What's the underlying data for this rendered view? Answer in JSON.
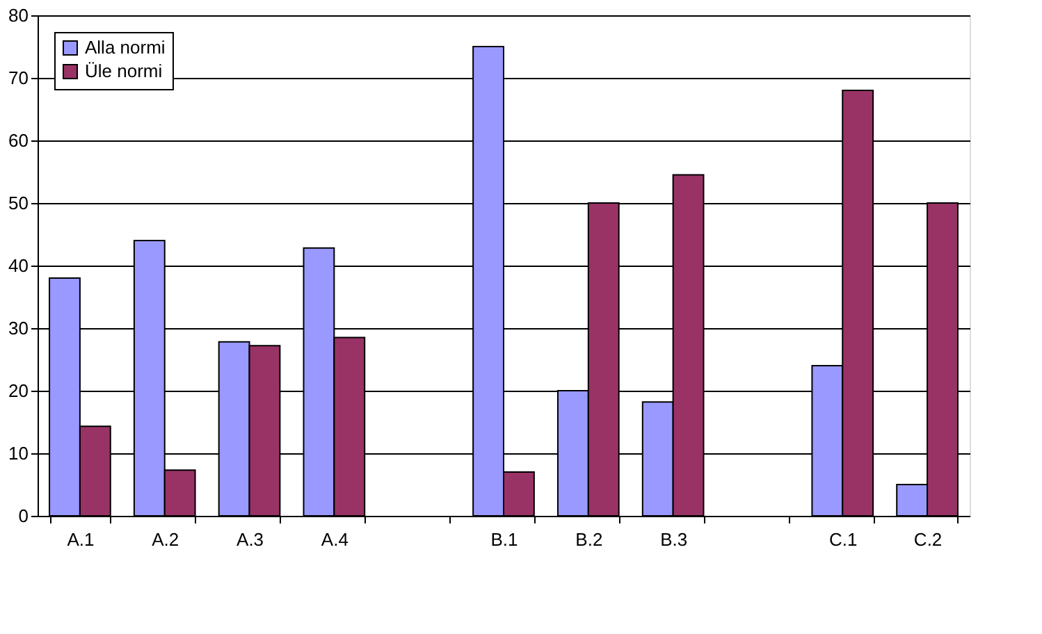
{
  "chart_data": {
    "type": "bar",
    "categories": [
      "A.1",
      "A.2",
      "A.3",
      "A.4",
      null,
      "B.1",
      "B.2",
      "B.3",
      null,
      "C.1",
      "C.2"
    ],
    "series": [
      {
        "name": "Alla normi",
        "color": "#9999ff",
        "values": [
          38,
          44,
          27.8,
          42.8,
          null,
          75,
          20,
          18.2,
          null,
          24,
          5
        ]
      },
      {
        "name": "Üle normi",
        "color": "#993366",
        "values": [
          14.3,
          7.3,
          27.2,
          28.5,
          null,
          7,
          50,
          54.5,
          null,
          68,
          50
        ]
      }
    ],
    "ylim": [
      0,
      80
    ],
    "yticks": [
      0,
      10,
      20,
      30,
      40,
      50,
      60,
      70,
      80
    ],
    "grid": "y",
    "legend": "top left"
  }
}
